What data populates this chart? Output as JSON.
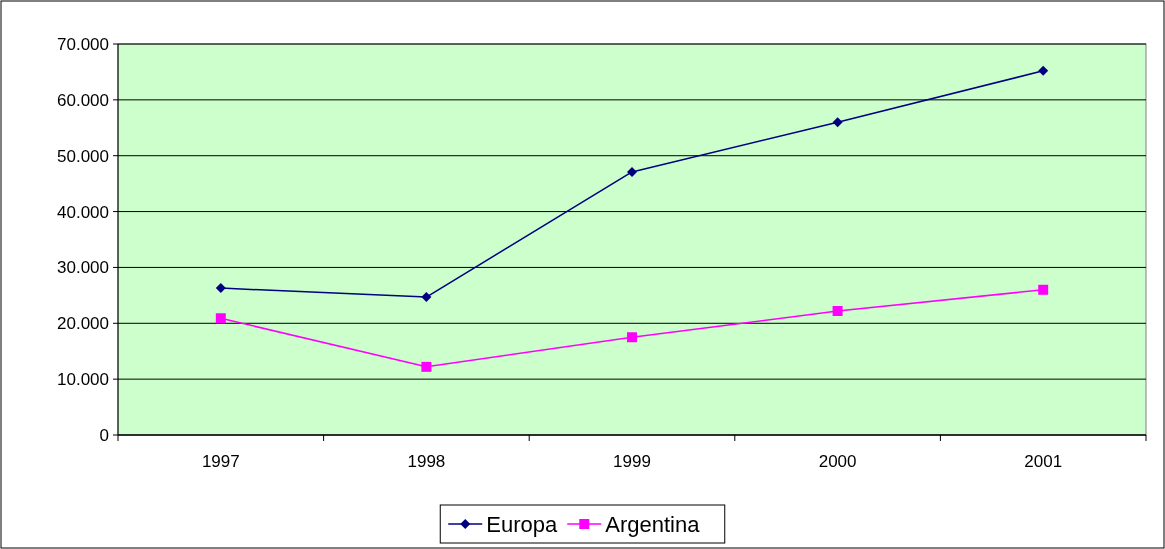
{
  "chart_data": {
    "type": "line",
    "categories": [
      "1997",
      "1998",
      "1999",
      "2000",
      "2001"
    ],
    "series": [
      {
        "name": "Europa",
        "color": "#000080",
        "marker": "diamond",
        "values": [
          26300,
          24700,
          47100,
          56000,
          65200
        ]
      },
      {
        "name": "Argentina",
        "color": "#ff00ff",
        "marker": "square",
        "values": [
          20900,
          12200,
          17500,
          22200,
          26000
        ]
      }
    ],
    "ylim": [
      0,
      70000
    ],
    "yticks": [
      {
        "value": 0,
        "label": "0"
      },
      {
        "value": 10000,
        "label": "10.000"
      },
      {
        "value": 20000,
        "label": "20.000"
      },
      {
        "value": 30000,
        "label": "30.000"
      },
      {
        "value": 40000,
        "label": "40.000"
      },
      {
        "value": 50000,
        "label": "50.000"
      },
      {
        "value": 60000,
        "label": "60.000"
      },
      {
        "value": 70000,
        "label": "70.000"
      }
    ],
    "grid": "y",
    "legend": "bottom",
    "line_style": "solid"
  }
}
